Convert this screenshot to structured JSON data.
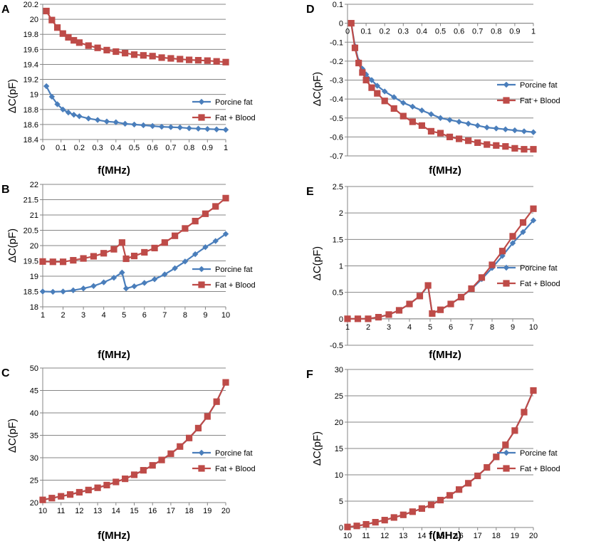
{
  "figure": {
    "colors": {
      "porcine": "#4a7ebb",
      "blood": "#be4b48",
      "grid": "#868686",
      "axis": "#868686",
      "text": "#000000"
    }
  },
  "chart_data": [
    {
      "panel": "A",
      "type": "line",
      "title": "",
      "xlabel": "f(MHz)",
      "ylabel": "ΔC(pF)",
      "xlim": [
        0,
        1
      ],
      "ylim": [
        18.4,
        20.2
      ],
      "xticks": [
        0,
        0.1,
        0.2,
        0.3,
        0.4,
        0.5,
        0.6,
        0.7,
        0.8,
        0.9,
        1
      ],
      "xtick_labels": [
        "0",
        "0.1",
        "0.2",
        "0.3",
        "0.4",
        "0.5",
        "0.6",
        "0.7",
        "0.8",
        "0.9",
        "1"
      ],
      "yticks": [
        18.4,
        18.6,
        18.8,
        19,
        19.2,
        19.4,
        19.6,
        19.8,
        20,
        20.2
      ],
      "ytick_labels": [
        "18.4",
        "18.6",
        "18.8",
        "19",
        "19.2",
        "19.4",
        "19.6",
        "19.8",
        "20",
        "20.2"
      ],
      "grid": "horizontal",
      "legend": "right",
      "series": [
        {
          "name": "Porcine fat",
          "x": [
            0.02,
            0.05,
            0.08,
            0.11,
            0.14,
            0.17,
            0.2,
            0.25,
            0.3,
            0.35,
            0.4,
            0.45,
            0.5,
            0.55,
            0.6,
            0.65,
            0.7,
            0.75,
            0.8,
            0.85,
            0.9,
            0.95,
            1
          ],
          "values": [
            19.11,
            18.97,
            18.87,
            18.8,
            18.76,
            18.73,
            18.71,
            18.68,
            18.66,
            18.64,
            18.63,
            18.61,
            18.6,
            18.59,
            18.58,
            18.57,
            18.565,
            18.56,
            18.55,
            18.545,
            18.54,
            18.535,
            18.53
          ]
        },
        {
          "name": "Fat + Blood",
          "x": [
            0.02,
            0.05,
            0.08,
            0.11,
            0.14,
            0.17,
            0.2,
            0.25,
            0.3,
            0.35,
            0.4,
            0.45,
            0.5,
            0.55,
            0.6,
            0.65,
            0.7,
            0.75,
            0.8,
            0.85,
            0.9,
            0.95,
            1
          ],
          "values": [
            20.11,
            19.99,
            19.89,
            19.81,
            19.76,
            19.72,
            19.69,
            19.65,
            19.62,
            19.59,
            19.57,
            19.55,
            19.53,
            19.52,
            19.51,
            19.49,
            19.48,
            19.47,
            19.46,
            19.455,
            19.45,
            19.44,
            19.43
          ]
        }
      ]
    },
    {
      "panel": "B",
      "type": "line",
      "title": "",
      "xlabel": "f(MHz)",
      "ylabel": "ΔC(pF)",
      "xlim": [
        1,
        10
      ],
      "ylim": [
        18,
        22
      ],
      "xticks": [
        1,
        2,
        3,
        4,
        5,
        6,
        7,
        8,
        9,
        10
      ],
      "xtick_labels": [
        "1",
        "2",
        "3",
        "4",
        "5",
        "6",
        "7",
        "8",
        "9",
        "10"
      ],
      "yticks": [
        18,
        18.5,
        19,
        19.5,
        20,
        20.5,
        21,
        21.5,
        22
      ],
      "ytick_labels": [
        "18",
        "18.5",
        "19",
        "19.5",
        "20",
        "20.5",
        "21",
        "21.5",
        "22"
      ],
      "grid": "horizontal",
      "legend": "right",
      "series": [
        {
          "name": "Porcine fat",
          "x": [
            1,
            1.5,
            2,
            2.5,
            3,
            3.5,
            4,
            4.5,
            4.9,
            5.1,
            5.5,
            6,
            6.5,
            7,
            7.5,
            8,
            8.5,
            9,
            9.5,
            10
          ],
          "values": [
            18.5,
            18.49,
            18.5,
            18.54,
            18.6,
            18.68,
            18.8,
            18.95,
            19.12,
            18.6,
            18.67,
            18.78,
            18.9,
            19.06,
            19.26,
            19.48,
            19.72,
            19.95,
            20.15,
            20.38
          ]
        },
        {
          "name": "Fat + Blood",
          "x": [
            1,
            1.5,
            2,
            2.5,
            3,
            3.5,
            4,
            4.5,
            4.9,
            5.1,
            5.5,
            6,
            6.5,
            7,
            7.5,
            8,
            8.5,
            9,
            9.5,
            10
          ],
          "values": [
            19.48,
            19.47,
            19.47,
            19.52,
            19.58,
            19.65,
            19.75,
            19.88,
            20.1,
            19.57,
            19.66,
            19.78,
            19.92,
            20.1,
            20.32,
            20.56,
            20.8,
            21.04,
            21.28,
            21.55
          ]
        }
      ]
    },
    {
      "panel": "C",
      "type": "line",
      "title": "",
      "xlabel": "f(MHz)",
      "ylabel": "ΔC(pF)",
      "xlim": [
        10,
        20
      ],
      "ylim": [
        20,
        50
      ],
      "xticks": [
        10,
        11,
        12,
        13,
        14,
        15,
        16,
        17,
        18,
        19,
        20
      ],
      "xtick_labels": [
        "10",
        "11",
        "12",
        "13",
        "14",
        "15",
        "16",
        "17",
        "18",
        "19",
        "20"
      ],
      "yticks": [
        20,
        25,
        30,
        35,
        40,
        45,
        50
      ],
      "ytick_labels": [
        "20",
        "25",
        "30",
        "35",
        "40",
        "45",
        "50"
      ],
      "grid": "horizontal",
      "legend": "right",
      "series": [
        {
          "name": "Porcine fat",
          "x": [
            10,
            10.5,
            11,
            11.5,
            12,
            12.5,
            13,
            13.5,
            14,
            14.5,
            15,
            15.5,
            16,
            16.5,
            17,
            17.5,
            18,
            18.5,
            19,
            19.5,
            20
          ],
          "values": [
            20.6,
            21,
            21.4,
            21.8,
            22.3,
            22.8,
            23.3,
            23.9,
            24.6,
            25.3,
            26.2,
            27.2,
            28.3,
            29.5,
            30.9,
            32.5,
            34.4,
            36.6,
            39.2,
            42.5,
            46.8
          ]
        },
        {
          "name": "Fat + Blood",
          "x": [
            10,
            10.5,
            11,
            11.5,
            12,
            12.5,
            13,
            13.5,
            14,
            14.5,
            15,
            15.5,
            16,
            16.5,
            17,
            17.5,
            18,
            18.5,
            19,
            19.5,
            20
          ],
          "values": [
            20.6,
            21,
            21.4,
            21.8,
            22.3,
            22.8,
            23.3,
            23.9,
            24.6,
            25.3,
            26.2,
            27.2,
            28.3,
            29.5,
            30.9,
            32.5,
            34.4,
            36.6,
            39.2,
            42.5,
            46.8
          ]
        }
      ]
    },
    {
      "panel": "D",
      "type": "line",
      "title": "",
      "xlabel": "f(MHz)",
      "ylabel": "ΔC(pF)",
      "xlim": [
        0,
        1
      ],
      "ylim": [
        -0.7,
        0.1
      ],
      "xticks": [
        0,
        0.1,
        0.2,
        0.3,
        0.4,
        0.5,
        0.6,
        0.7,
        0.8,
        0.9,
        1
      ],
      "xtick_labels": [
        "0",
        "0.1",
        "0.2",
        "0.3",
        "0.4",
        "0.5",
        "0.6",
        "0.7",
        "0.8",
        "0.9",
        "1"
      ],
      "xaxis_at": 0,
      "yticks": [
        -0.7,
        -0.6,
        -0.5,
        -0.4,
        -0.3,
        -0.2,
        -0.1,
        0,
        0.1
      ],
      "ytick_labels": [
        "-0.7",
        "-0.6",
        "-0.5",
        "-0.4",
        "-0.3",
        "-0.2",
        "-0.1",
        "0",
        "0.1"
      ],
      "grid": "horizontal",
      "legend": "right",
      "series": [
        {
          "name": "Porcine fat",
          "x": [
            0.02,
            0.04,
            0.06,
            0.08,
            0.1,
            0.13,
            0.16,
            0.2,
            0.25,
            0.3,
            0.35,
            0.4,
            0.45,
            0.5,
            0.55,
            0.6,
            0.65,
            0.7,
            0.75,
            0.8,
            0.85,
            0.9,
            0.95,
            1
          ],
          "values": [
            0,
            -0.12,
            -0.2,
            -0.24,
            -0.27,
            -0.3,
            -0.33,
            -0.36,
            -0.39,
            -0.42,
            -0.44,
            -0.46,
            -0.48,
            -0.5,
            -0.51,
            -0.52,
            -0.53,
            -0.54,
            -0.55,
            -0.555,
            -0.56,
            -0.565,
            -0.57,
            -0.575
          ]
        },
        {
          "name": "Fat + Blood",
          "x": [
            0.02,
            0.04,
            0.06,
            0.08,
            0.1,
            0.13,
            0.16,
            0.2,
            0.25,
            0.3,
            0.35,
            0.4,
            0.45,
            0.5,
            0.55,
            0.6,
            0.65,
            0.7,
            0.75,
            0.8,
            0.85,
            0.9,
            0.95,
            1
          ],
          "values": [
            0,
            -0.13,
            -0.21,
            -0.26,
            -0.3,
            -0.34,
            -0.37,
            -0.41,
            -0.45,
            -0.49,
            -0.52,
            -0.54,
            -0.57,
            -0.58,
            -0.6,
            -0.61,
            -0.62,
            -0.63,
            -0.64,
            -0.645,
            -0.65,
            -0.66,
            -0.665,
            -0.665
          ]
        }
      ]
    },
    {
      "panel": "E",
      "type": "line",
      "title": "",
      "xlabel": "f(MHz)",
      "ylabel": "ΔC(pF)",
      "xlim": [
        1,
        10
      ],
      "ylim": [
        -0.5,
        2.5
      ],
      "xticks": [
        1,
        2,
        3,
        4,
        5,
        6,
        7,
        8,
        9,
        10
      ],
      "xtick_labels": [
        "1",
        "2",
        "3",
        "4",
        "5",
        "6",
        "7",
        "8",
        "9",
        "10"
      ],
      "xaxis_at": 0,
      "yticks": [
        -0.5,
        0,
        0.5,
        1,
        1.5,
        2,
        2.5
      ],
      "ytick_labels": [
        "-0.5",
        "0",
        "0.5",
        "1",
        "1.5",
        "2",
        "2.5"
      ],
      "grid": "horizontal",
      "legend": "right",
      "series": [
        {
          "name": "Porcine fat",
          "x": [
            1,
            1.5,
            2,
            2.5,
            3,
            3.5,
            4,
            4.5,
            4.9,
            5.1,
            5.5,
            6,
            6.5,
            7,
            7.5,
            8,
            8.5,
            9,
            9.5,
            10
          ],
          "values": [
            0,
            0,
            0,
            0.03,
            0.08,
            0.16,
            0.28,
            0.43,
            0.62,
            0.1,
            0.17,
            0.28,
            0.41,
            0.56,
            0.75,
            0.96,
            1.19,
            1.43,
            1.64,
            1.86
          ]
        },
        {
          "name": "Fat + Blood",
          "x": [
            1,
            1.5,
            2,
            2.5,
            3,
            3.5,
            4,
            4.5,
            4.9,
            5.1,
            5.5,
            6,
            6.5,
            7,
            7.5,
            8,
            8.5,
            9,
            9.5,
            10
          ],
          "values": [
            0,
            0,
            0,
            0.03,
            0.08,
            0.16,
            0.28,
            0.43,
            0.63,
            0.1,
            0.17,
            0.28,
            0.41,
            0.57,
            0.78,
            1.02,
            1.28,
            1.56,
            1.82,
            2.08
          ]
        }
      ]
    },
    {
      "panel": "F",
      "type": "line",
      "title": "",
      "xlabel": "f(MHz)",
      "ylabel": "ΔC(pF)",
      "xlim": [
        10,
        20
      ],
      "ylim": [
        0,
        30
      ],
      "xticks": [
        10,
        11,
        12,
        13,
        14,
        15,
        16,
        17,
        18,
        19,
        20
      ],
      "xtick_labels": [
        "10",
        "11",
        "12",
        "13",
        "14",
        "15",
        "16",
        "17",
        "18",
        "19",
        "20"
      ],
      "yticks": [
        0,
        5,
        10,
        15,
        20,
        25,
        30
      ],
      "ytick_labels": [
        "0",
        "5",
        "10",
        "15",
        "20",
        "25",
        "30"
      ],
      "grid": "horizontal",
      "legend": "right",
      "series": [
        {
          "name": "Porcine fat",
          "x": [
            10,
            10.5,
            11,
            11.5,
            12,
            12.5,
            13,
            13.5,
            14,
            14.5,
            15,
            15.5,
            16,
            16.5,
            17,
            17.5,
            18,
            18.5,
            19,
            19.5,
            20
          ],
          "values": [
            0.1,
            0.3,
            0.6,
            1,
            1.4,
            1.9,
            2.4,
            3,
            3.6,
            4.3,
            5.2,
            6.1,
            7.2,
            8.4,
            9.8,
            11.4,
            13.4,
            15.7,
            18.4,
            21.9,
            26
          ]
        },
        {
          "name": "Fat + Blood",
          "x": [
            10,
            10.5,
            11,
            11.5,
            12,
            12.5,
            13,
            13.5,
            14,
            14.5,
            15,
            15.5,
            16,
            16.5,
            17,
            17.5,
            18,
            18.5,
            19,
            19.5,
            20
          ],
          "values": [
            0.1,
            0.3,
            0.6,
            1,
            1.4,
            1.9,
            2.4,
            3,
            3.6,
            4.3,
            5.2,
            6.1,
            7.2,
            8.4,
            9.8,
            11.4,
            13.4,
            15.7,
            18.4,
            21.9,
            26
          ]
        }
      ]
    }
  ]
}
